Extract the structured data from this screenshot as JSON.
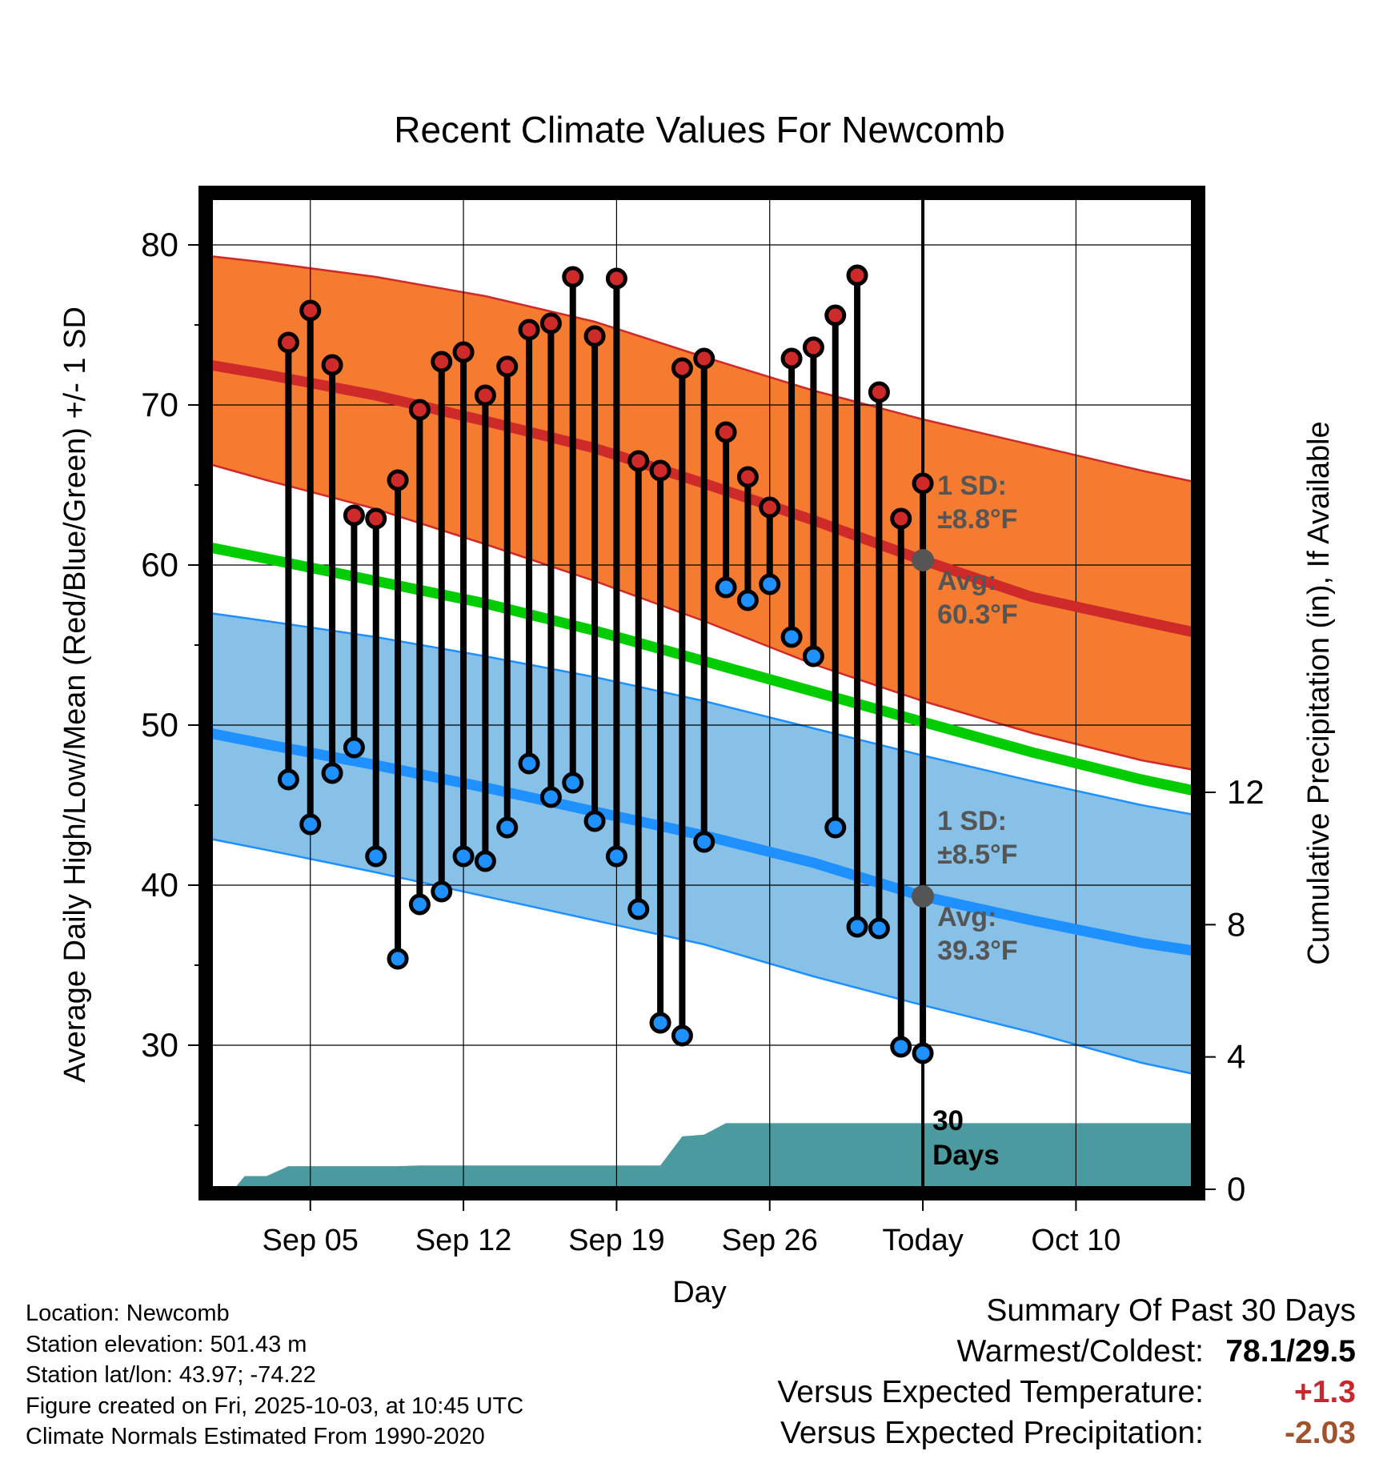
{
  "chart_data": {
    "type": "line",
    "title": "Recent Climate Values For Newcomb",
    "xlabel": "Day",
    "ylabel": "Average Daily High/Low/Mean (Red/Blue/Green) +/- 1 SD",
    "y2label": "Cumulative Precipitation (in), If Available",
    "ylim": [
      21,
      83
    ],
    "y2lim": [
      0,
      30
    ],
    "y_ticks": [
      30,
      40,
      50,
      60,
      70,
      80
    ],
    "y2_ticks": [
      0,
      4,
      8,
      12
    ],
    "xlim": [
      -2.6,
      42.4
    ],
    "x_ticks": [
      {
        "day": 2,
        "label": "Sep 05"
      },
      {
        "day": 9,
        "label": "Sep 12"
      },
      {
        "day": 16,
        "label": "Sep 19"
      },
      {
        "day": 23,
        "label": "Sep 26"
      },
      {
        "day": 30,
        "label": "Today"
      },
      {
        "day": 37,
        "label": "Oct 10"
      }
    ],
    "today_day": 30,
    "today_label": "30 Days",
    "normals_x": [
      -2.6,
      0,
      5,
      10,
      15,
      20,
      25,
      30,
      35,
      40,
      42.4
    ],
    "normal_high": [
      72.5,
      71.9,
      70.6,
      69.0,
      67.3,
      65.1,
      62.8,
      60.3,
      58.0,
      56.5,
      55.8
    ],
    "normal_high_upper": [
      79.3,
      78.9,
      78.0,
      76.8,
      75.2,
      73.0,
      70.9,
      69.1,
      67.5,
      65.9,
      65.2
    ],
    "normal_high_lower": [
      66.3,
      65.3,
      63.5,
      61.3,
      59.0,
      56.5,
      53.8,
      51.5,
      49.5,
      47.8,
      47.2
    ],
    "normal_mean": [
      61.1,
      60.4,
      59.0,
      57.6,
      55.9,
      54.0,
      52.1,
      50.2,
      48.3,
      46.6,
      45.9
    ],
    "normal_low": [
      49.5,
      48.8,
      47.5,
      46.1,
      44.6,
      43.1,
      41.4,
      39.3,
      37.8,
      36.4,
      35.9
    ],
    "normal_low_upper": [
      57.0,
      56.5,
      55.5,
      54.3,
      53.0,
      51.5,
      49.8,
      48.1,
      46.5,
      45.0,
      44.4
    ],
    "normal_low_lower": [
      42.9,
      42.2,
      40.8,
      39.3,
      37.8,
      36.3,
      34.3,
      32.5,
      30.8,
      28.9,
      28.2
    ],
    "series": [
      {
        "name": "Daily High",
        "color": "#c8282d",
        "x": [
          1,
          2,
          3,
          4,
          5,
          6,
          7,
          8,
          9,
          10,
          11,
          12,
          13,
          14,
          15,
          16,
          17,
          18,
          19,
          20,
          21,
          22,
          23,
          24,
          25,
          26,
          27,
          28,
          29
        ],
        "values": [
          73.9,
          75.9,
          72.5,
          63.1,
          62.9,
          65.3,
          69.7,
          72.7,
          73.3,
          70.6,
          72.4,
          74.7,
          75.1,
          78.0,
          74.3,
          77.9,
          66.5,
          65.9,
          72.3,
          72.9,
          68.3,
          65.5,
          63.6,
          72.9,
          73.6,
          75.6,
          78.1,
          70.8,
          62.9
        ]
      },
      {
        "name": "Daily Low",
        "color": "#1e90ff",
        "x": [
          1,
          2,
          3,
          4,
          5,
          6,
          7,
          8,
          9,
          10,
          11,
          12,
          13,
          14,
          15,
          16,
          17,
          18,
          19,
          20,
          21,
          22,
          23,
          24,
          25,
          26,
          27,
          28,
          29
        ],
        "values": [
          46.6,
          43.8,
          47.0,
          48.6,
          41.8,
          35.4,
          38.8,
          39.6,
          41.8,
          41.5,
          43.6,
          47.6,
          45.5,
          46.4,
          44.0,
          41.8,
          38.5,
          31.4,
          30.6,
          42.7,
          58.6,
          57.8,
          58.8,
          55.5,
          54.3,
          43.6,
          37.4,
          37.3,
          29.9
        ]
      },
      {
        "name": "Cumulative Precipitation",
        "color": "#4a9aa0",
        "x": [
          -2.6,
          -1.5,
          -1,
          0,
          1,
          2,
          3,
          4,
          5,
          6,
          7,
          8,
          9,
          10,
          11,
          12,
          13,
          14,
          15,
          16,
          17,
          18,
          19,
          20,
          21,
          22,
          23,
          24,
          25,
          26,
          27,
          28,
          29,
          30,
          42.4
        ],
        "values": [
          0,
          0,
          0.4,
          0.4,
          0.7,
          0.7,
          0.7,
          0.7,
          0.7,
          0.7,
          0.72,
          0.72,
          0.72,
          0.72,
          0.72,
          0.72,
          0.72,
          0.72,
          0.72,
          0.72,
          0.72,
          0.72,
          1.6,
          1.65,
          2.0,
          2.0,
          2.0,
          2.0,
          2.0,
          2.0,
          2.0,
          2.0,
          2.0,
          2.0,
          2.0
        ]
      }
    ],
    "last_point": {
      "day": 30,
      "high": 65.1,
      "low": 29.5
    },
    "high_annot": {
      "sd_label": "1 SD:",
      "sd_value": "±8.8°F",
      "avg_label": "Avg:",
      "avg_value": "60.3°F"
    },
    "low_annot": {
      "sd_label": "1 SD:",
      "sd_value": "±8.5°F",
      "avg_label": "Avg:",
      "avg_value": "39.3°F"
    }
  },
  "colors": {
    "high_band": "#f47b30",
    "high_line": "#cf2a2a",
    "mean_line": "#00cc00",
    "low_band": "#87c1e8",
    "low_line": "#1e90ff",
    "precip": "#4a9aa0",
    "annotation": "#555555"
  },
  "meta": {
    "location": "Location: Newcomb",
    "elevation": "Station elevation: 501.43 m",
    "latlon": "Station lat/lon: 43.97; -74.22",
    "created": "Figure created on Fri, 2025-10-03, at 10:45 UTC",
    "normals": "Climate Normals Estimated From 1990-2020"
  },
  "summary": {
    "title": "Summary Of Past 30 Days",
    "warm_cold_label": "Warmest/Coldest:",
    "warm_cold_value": "78.1/29.5",
    "temp_label": "Versus Expected Temperature:",
    "temp_value": "+1.3",
    "precip_label": "Versus Expected Precipitation:",
    "precip_value": "-2.03"
  }
}
